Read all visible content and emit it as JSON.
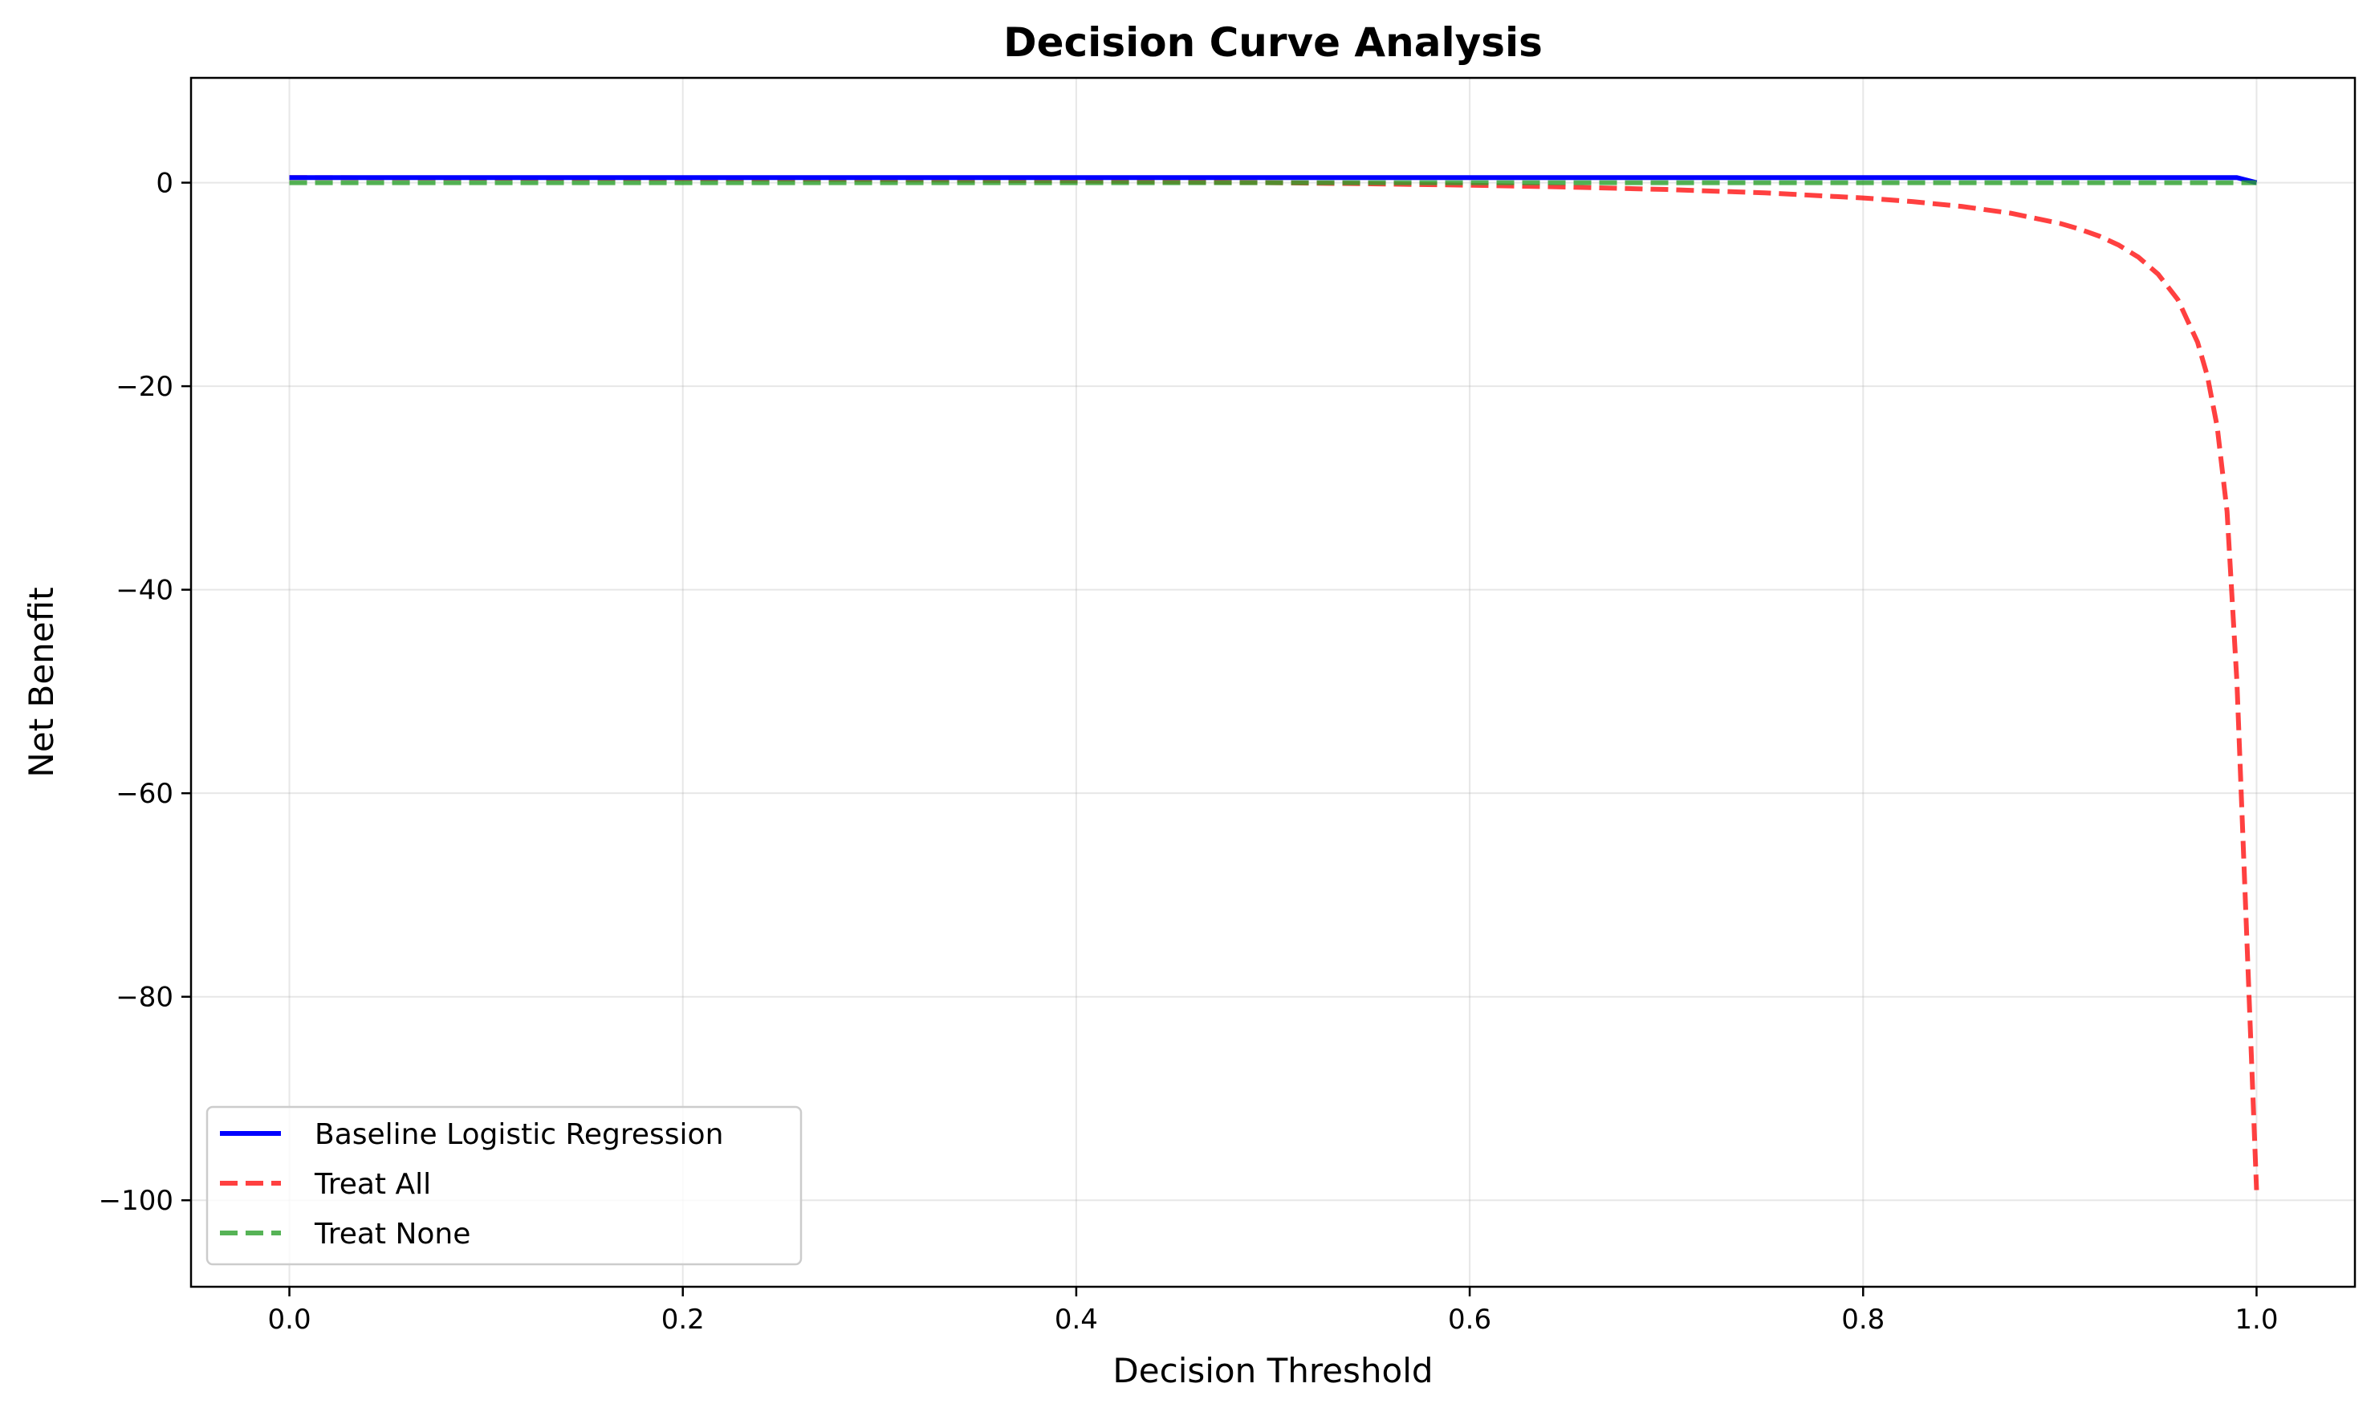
{
  "chart_data": {
    "type": "line",
    "title": "Decision Curve Analysis",
    "xlabel": "Decision Threshold",
    "ylabel": "Net Benefit",
    "xlim": [
      -0.05,
      1.05
    ],
    "ylim": [
      -108.5,
      10.3
    ],
    "grid": true,
    "legend_position": "lower-left",
    "x_ticks": [
      0.0,
      0.2,
      0.4,
      0.6,
      0.8,
      1.0
    ],
    "x_tick_labels": [
      "0.0",
      "0.2",
      "0.4",
      "0.6",
      "0.8",
      "1.0"
    ],
    "y_ticks": [
      0,
      -20,
      -40,
      -60,
      -80,
      -100
    ],
    "y_tick_labels": [
      "0",
      "−20",
      "−40",
      "−60",
      "−80",
      "−100"
    ],
    "series": [
      {
        "name": "Baseline Logistic Regression",
        "color": "#0000ff",
        "style": "solid",
        "x": [
          0.0,
          0.99,
          1.0
        ],
        "y": [
          0.5,
          0.5,
          0.0
        ]
      },
      {
        "name": "Treat All",
        "color": "#ff0000",
        "style": "dashed",
        "x": [
          0.0,
          0.1,
          0.2,
          0.3,
          0.4,
          0.5,
          0.55,
          0.6,
          0.65,
          0.7,
          0.75,
          0.8,
          0.825,
          0.85,
          0.875,
          0.9,
          0.91,
          0.92,
          0.93,
          0.94,
          0.95,
          0.96,
          0.97,
          0.975,
          0.98,
          0.985,
          0.99,
          1.0
        ],
        "y": [
          0.5,
          0.44,
          0.38,
          0.29,
          0.17,
          0.0,
          -0.11,
          -0.25,
          -0.43,
          -0.67,
          -1.0,
          -1.5,
          -1.86,
          -2.33,
          -3.0,
          -4.0,
          -4.56,
          -5.25,
          -6.14,
          -7.33,
          -9.0,
          -11.5,
          -15.67,
          -19.0,
          -24.0,
          -32.3,
          -49.0,
          -99.0
        ]
      },
      {
        "name": "Treat None",
        "color": "#2ca02c",
        "style": "dashed",
        "x": [
          0.0,
          1.0
        ],
        "y": [
          0.0,
          0.0
        ]
      }
    ]
  }
}
